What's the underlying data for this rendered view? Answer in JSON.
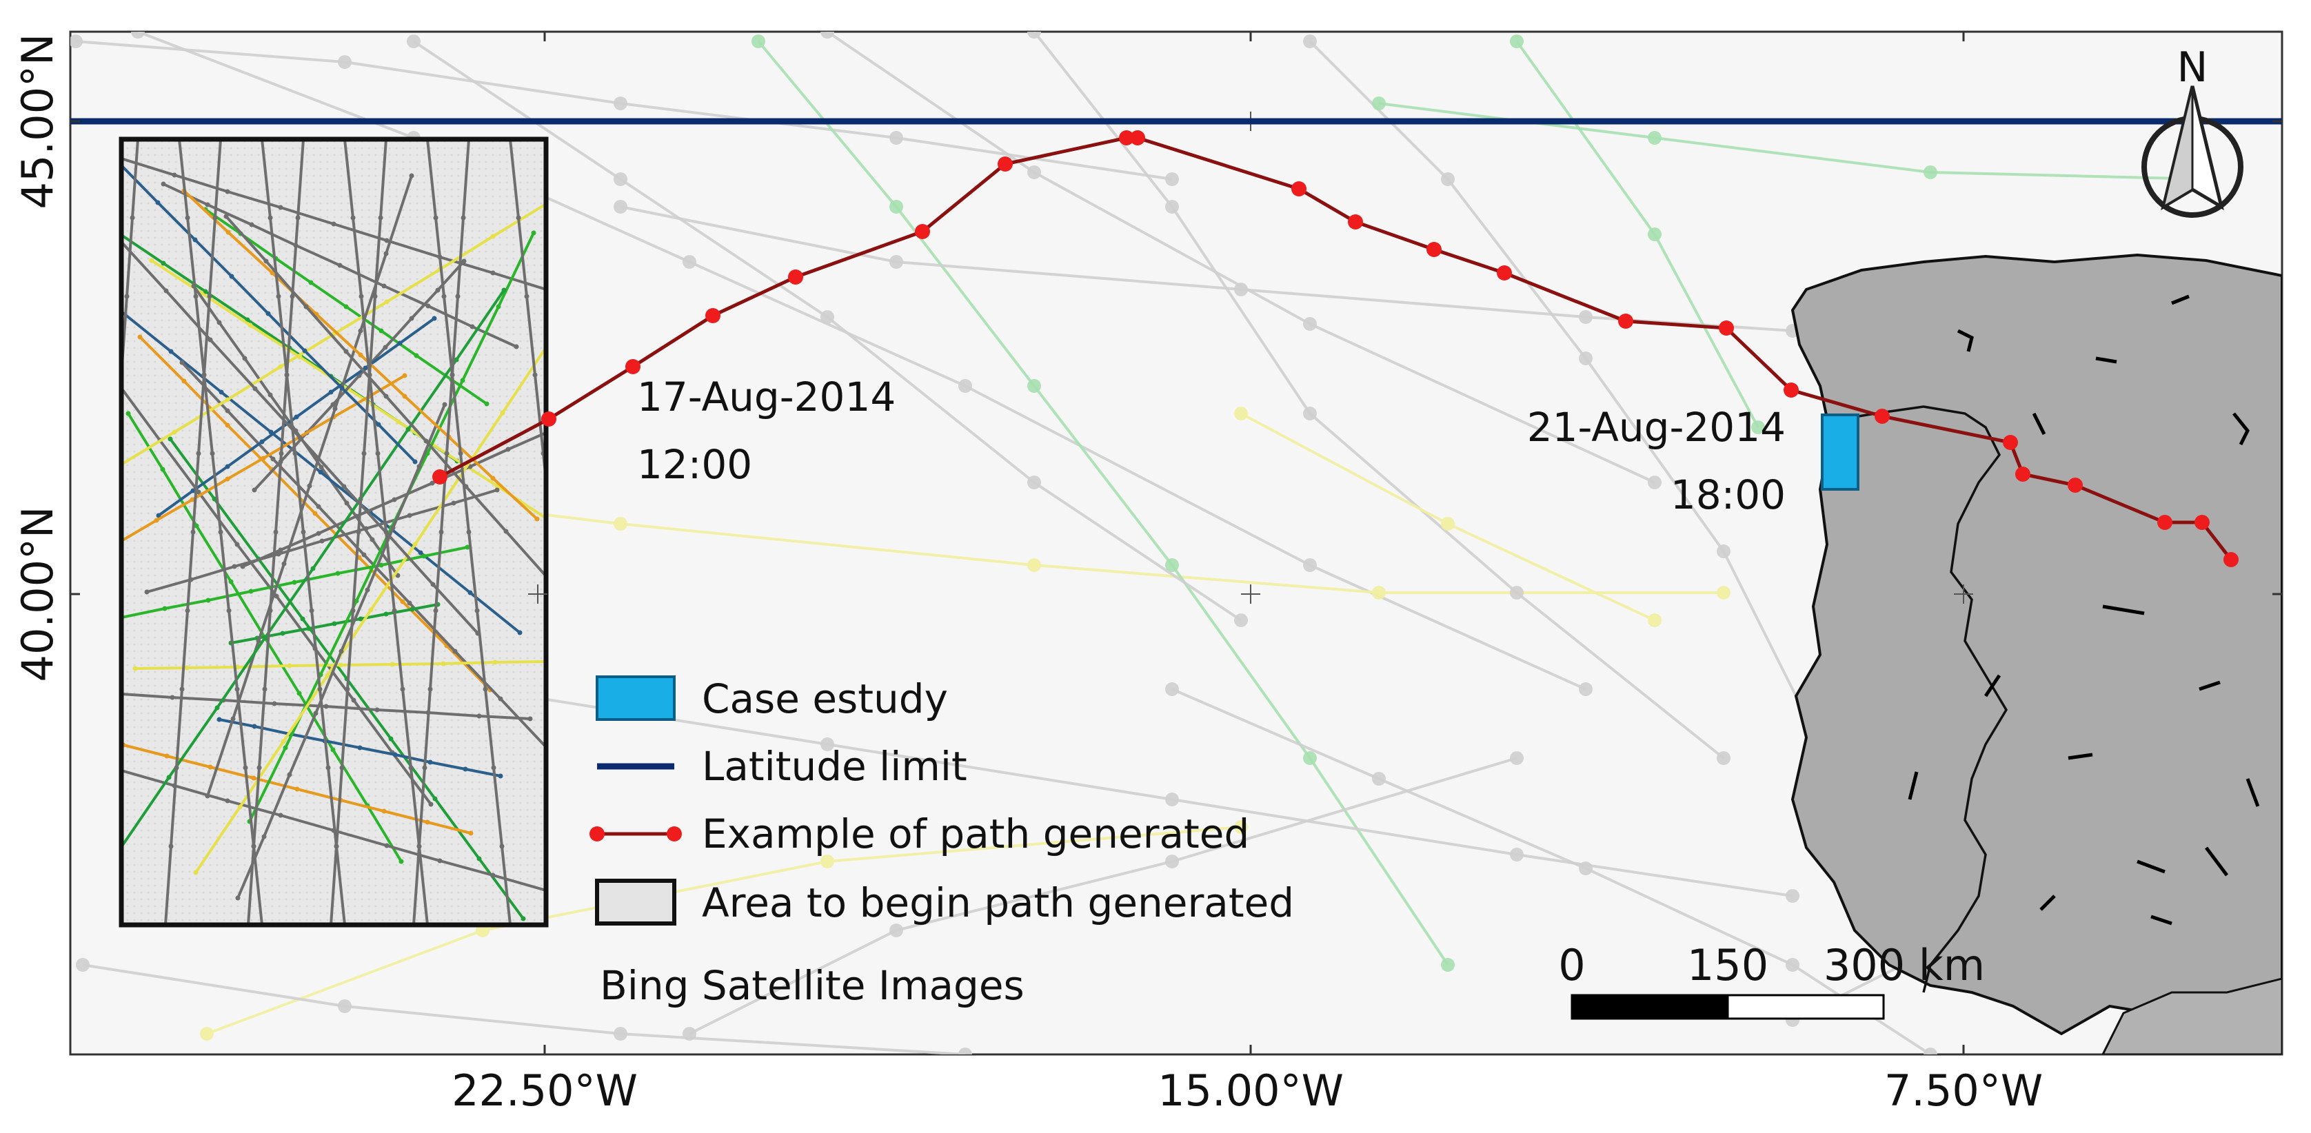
{
  "map": {
    "x_ticks": [
      "22.50°W",
      "15.00°W",
      "7.50°W"
    ],
    "y_ticks": [
      "45.00°N",
      "40.00°N"
    ],
    "north_label": "N",
    "annotations": {
      "start_date": "17-Aug-2014",
      "start_time": "12:00",
      "end_date": "21-Aug-2014",
      "end_time": "18:00"
    },
    "scale_bar": {
      "labels": [
        "0",
        "150",
        "300 km"
      ]
    },
    "attribution": "Bing Satellite Images",
    "colors": {
      "latitude_limit": "#0a2a6e",
      "path_line": "#8b1010",
      "path_points": "#ee1c1c",
      "case_study": "#1aaee6",
      "area_box": "#e4e4e4",
      "land": "#a9a9a9"
    }
  },
  "legend": {
    "items": [
      {
        "label": "Case estudy",
        "symbol": "blue-rectangle"
      },
      {
        "label": "Latitude limit",
        "symbol": "navy-line"
      },
      {
        "label": "Example of path generated",
        "symbol": "red-dotted-line"
      },
      {
        "label": "Area to begin path generated",
        "symbol": "grey-box"
      }
    ]
  }
}
